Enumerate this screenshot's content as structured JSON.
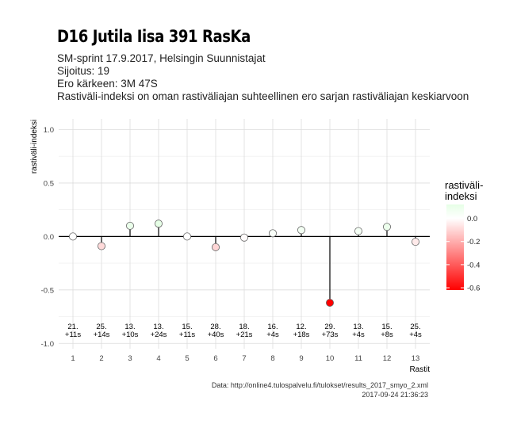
{
  "header": {
    "title": "D16 Jutila Iisa 391 RasKa",
    "subtitle_lines": [
      "SM-sprint 17.9.2017, Helsingin Suunnistajat",
      "Sijoitus: 19",
      "Ero kärkeen: 3M 47S",
      "Rastiväli-indeksi on oman rastiväliajan suhteellinen ero sarjan rastiväliajan keskiarvoon"
    ]
  },
  "caption": {
    "source": "Data: http://online4.tulospalvelu.fi/tulokset/results_2017_smyo_2.xml",
    "timestamp": "2017-09-24 21:36:23"
  },
  "chart_data": {
    "type": "lollipop",
    "xlabel": "Rastit",
    "ylabel": "rastiväli-indeksi",
    "ylim": [
      -1.05,
      1.1
    ],
    "yticks": [
      1.0,
      0.5,
      0.0,
      -0.5,
      -1.0
    ],
    "ytick_labels": [
      "1.0",
      "0.5",
      "0.0",
      "-0.5",
      "-1.0"
    ],
    "x": [
      1,
      2,
      3,
      4,
      5,
      6,
      7,
      8,
      9,
      10,
      11,
      12,
      13
    ],
    "values": [
      0.0,
      -0.09,
      0.1,
      0.12,
      0.0,
      -0.1,
      -0.01,
      0.03,
      0.06,
      -0.62,
      0.05,
      0.09,
      -0.05
    ],
    "annotations": [
      [
        "21.",
        "+11s"
      ],
      [
        "25.",
        "+14s"
      ],
      [
        "13.",
        "+10s"
      ],
      [
        "13.",
        "+24s"
      ],
      [
        "15.",
        "+11s"
      ],
      [
        "28.",
        "+40s"
      ],
      [
        "18.",
        "+21s"
      ],
      [
        "16.",
        "+4s"
      ],
      [
        "12.",
        "+18s"
      ],
      [
        "29.",
        "+73s"
      ],
      [
        "13.",
        "+4s"
      ],
      [
        "15.",
        "+8s"
      ],
      [
        "25.",
        "+4s"
      ]
    ],
    "grid": true,
    "legend": {
      "title_lines": [
        "rastiväli-",
        "indeksi"
      ],
      "ticks": [
        0.0,
        -0.2,
        -0.4,
        -0.6
      ],
      "tick_labels": [
        "0.0",
        "-0.2",
        "-0.4",
        "-0.6"
      ],
      "range": [
        -0.62,
        0.12
      ],
      "color_low": "#ff0000",
      "color_mid": "#ffffff",
      "color_high": "#e6ffe6",
      "placement": "right"
    }
  }
}
